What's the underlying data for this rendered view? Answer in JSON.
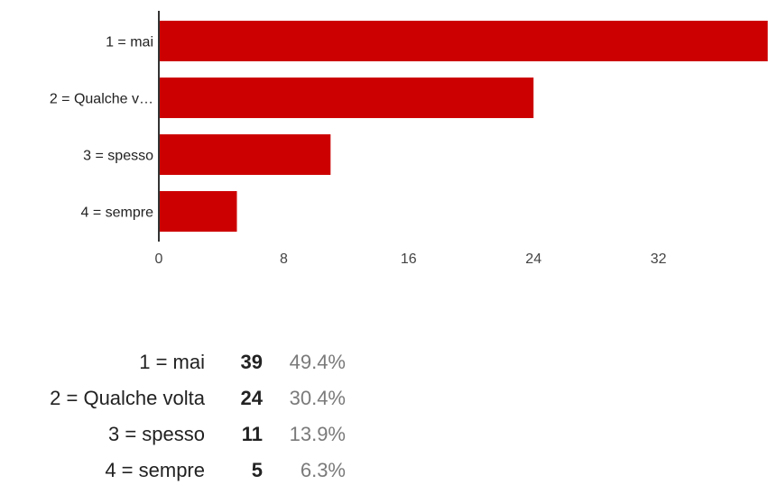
{
  "chart_data": {
    "type": "bar",
    "orientation": "horizontal",
    "categories": [
      "1 = mai",
      "2 = Qualche v…",
      "3 = spesso",
      "4 = sempre"
    ],
    "values": [
      39,
      24,
      11,
      5
    ],
    "x_ticks": [
      "0",
      "8",
      "16",
      "24",
      "32"
    ],
    "xlim": [
      0,
      39
    ],
    "grid": false,
    "bar_color": "#cc0000",
    "axis_color": "#333333"
  },
  "summary": [
    {
      "label": "1 = mai",
      "count": "39",
      "percent": "49.4%"
    },
    {
      "label": "2 = Qualche volta",
      "count": "24",
      "percent": "30.4%"
    },
    {
      "label": "3 = spesso",
      "count": "11",
      "percent": "13.9%"
    },
    {
      "label": "4 = sempre",
      "count": "5",
      "percent": "6.3%"
    }
  ]
}
